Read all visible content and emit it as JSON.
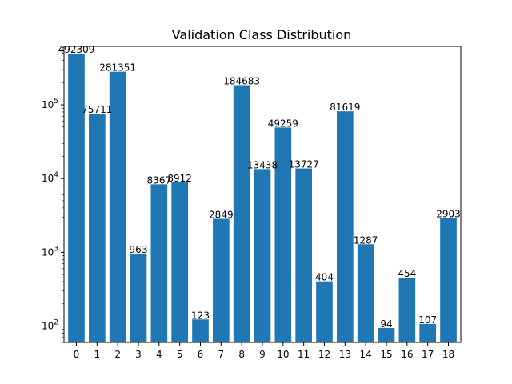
{
  "chart_data": {
    "type": "bar",
    "title": "Validation Class Distribution",
    "xlabel": "",
    "ylabel": "",
    "yscale": "log",
    "ylim": [
      60,
      620000
    ],
    "yticks": [
      {
        "value": 100,
        "base": "10",
        "exp": "2"
      },
      {
        "value": 1000,
        "base": "10",
        "exp": "3"
      },
      {
        "value": 10000,
        "base": "10",
        "exp": "4"
      },
      {
        "value": 100000,
        "base": "10",
        "exp": "5"
      }
    ],
    "categories": [
      "0",
      "1",
      "2",
      "3",
      "4",
      "5",
      "6",
      "7",
      "8",
      "9",
      "10",
      "11",
      "12",
      "13",
      "14",
      "15",
      "16",
      "17",
      "18"
    ],
    "values": [
      492309,
      75711,
      281351,
      963,
      8367,
      8912,
      123,
      2849,
      184683,
      13438,
      49259,
      13727,
      404,
      81619,
      1287,
      94,
      454,
      107,
      2903
    ],
    "bar_color": "#1f77b4",
    "grid": false,
    "legend": "none"
  }
}
